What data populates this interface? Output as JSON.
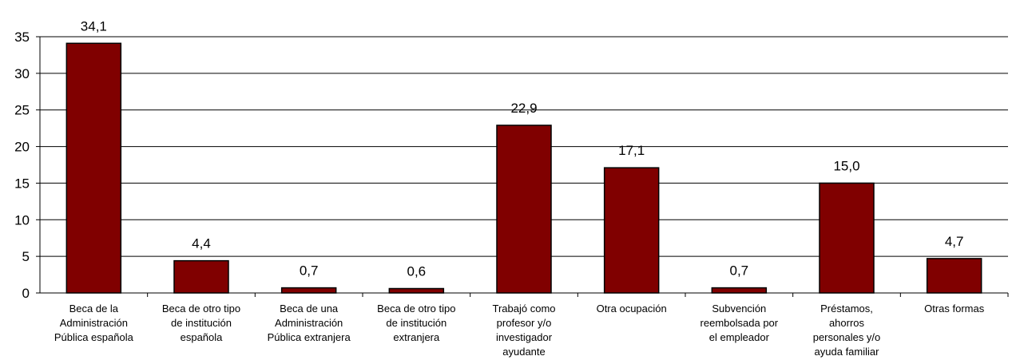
{
  "chart_data": {
    "type": "bar",
    "categories": [
      [
        "Beca de la",
        "Administración",
        "Pública española"
      ],
      [
        "Beca de otro tipo",
        "de institución",
        "española"
      ],
      [
        "Beca de una",
        "Administración",
        "Pública extranjera"
      ],
      [
        "Beca de otro tipo",
        "de institución",
        "extranjera"
      ],
      [
        "Trabajó como",
        "profesor y/o",
        "investigador",
        "ayudante"
      ],
      [
        "Otra ocupación"
      ],
      [
        "Subvención",
        "reembolsada por",
        "el empleador"
      ],
      [
        "Préstamos,",
        "ahorros",
        "personales y/o",
        "ayuda familiar"
      ],
      [
        "Otras formas"
      ]
    ],
    "values": [
      34.1,
      4.4,
      0.7,
      0.6,
      22.9,
      17.1,
      0.7,
      15.0,
      4.7
    ],
    "value_labels": [
      "34,1",
      "4,4",
      "0,7",
      "0,6",
      "22,9",
      "17,1",
      "0,7",
      "15,0",
      "4,7"
    ],
    "yticks": [
      0,
      5,
      10,
      15,
      20,
      25,
      30,
      35
    ],
    "ylim": [
      0,
      35
    ],
    "grid": true,
    "legend": "none",
    "colors": {
      "bar": "#800000",
      "bar_edge": "#000000",
      "grid": "#000000"
    }
  }
}
